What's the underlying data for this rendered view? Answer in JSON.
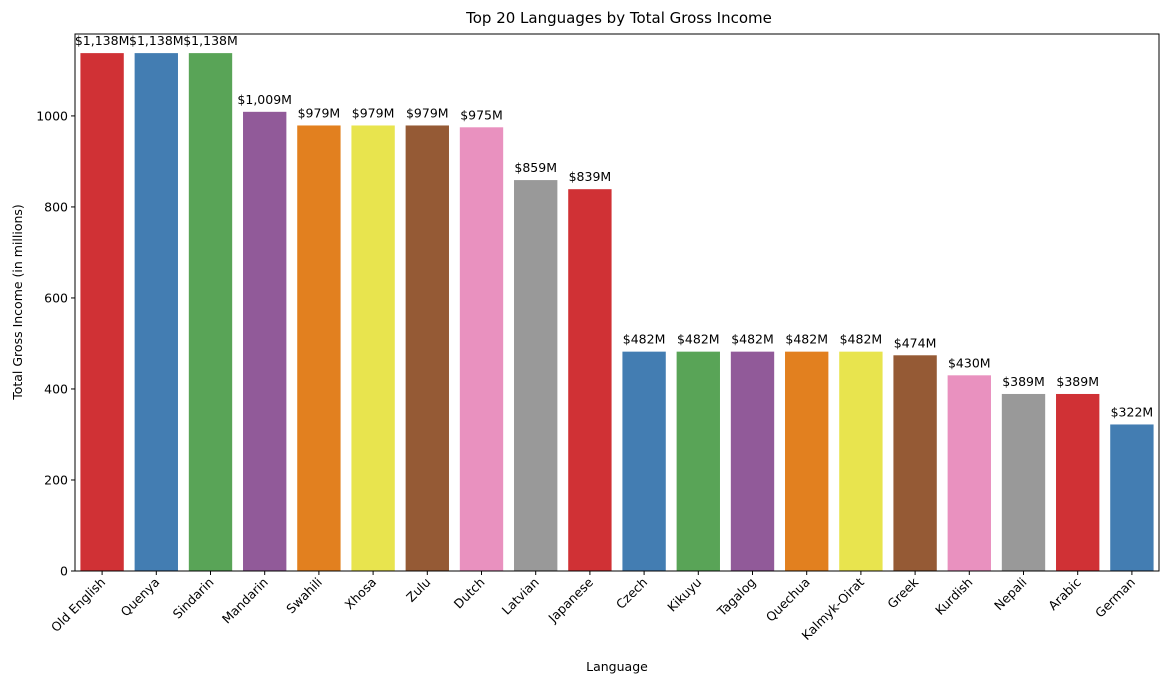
{
  "chart_data": {
    "type": "bar",
    "title": "Top 20 Languages by Total Gross Income",
    "xlabel": "Language",
    "ylabel": "Total Gross Income (in millions)",
    "ylim": [
      0,
      1180
    ],
    "yticks": [
      0,
      200,
      400,
      600,
      800,
      1000
    ],
    "grid": false,
    "categories": [
      "Old English",
      "Quenya",
      "Sindarin",
      "Mandarin",
      "Swahili",
      "Xhosa",
      "Zulu",
      "Dutch",
      "Latvian",
      "Japanese",
      "Czech",
      "Kikuyu",
      "Tagalog",
      "Quechua",
      "Kalmyk-Oirat",
      "Greek",
      "Kurdish",
      "Nepali",
      "Arabic",
      "German"
    ],
    "values": [
      1138,
      1138,
      1138,
      1009,
      979,
      979,
      979,
      975,
      859,
      839,
      482,
      482,
      482,
      482,
      482,
      474,
      430,
      389,
      389,
      322
    ],
    "data_labels": [
      "$1,138M",
      "$1,138M",
      "$1,138M",
      "$1,009M",
      "$979M",
      "$979M",
      "$979M",
      "$975M",
      "$859M",
      "$839M",
      "$482M",
      "$482M",
      "$482M",
      "$482M",
      "$482M",
      "$474M",
      "$430M",
      "$389M",
      "$389M",
      "$322M"
    ],
    "colors": [
      "#d03135",
      "#437db2",
      "#59a457",
      "#915a99",
      "#e2801f",
      "#e8e44e",
      "#955a35",
      "#e991bf",
      "#999999",
      "#d03135",
      "#437db2",
      "#59a457",
      "#915a99",
      "#e2801f",
      "#e8e44e",
      "#955a35",
      "#e991bf",
      "#999999",
      "#d03135",
      "#437db2"
    ]
  }
}
